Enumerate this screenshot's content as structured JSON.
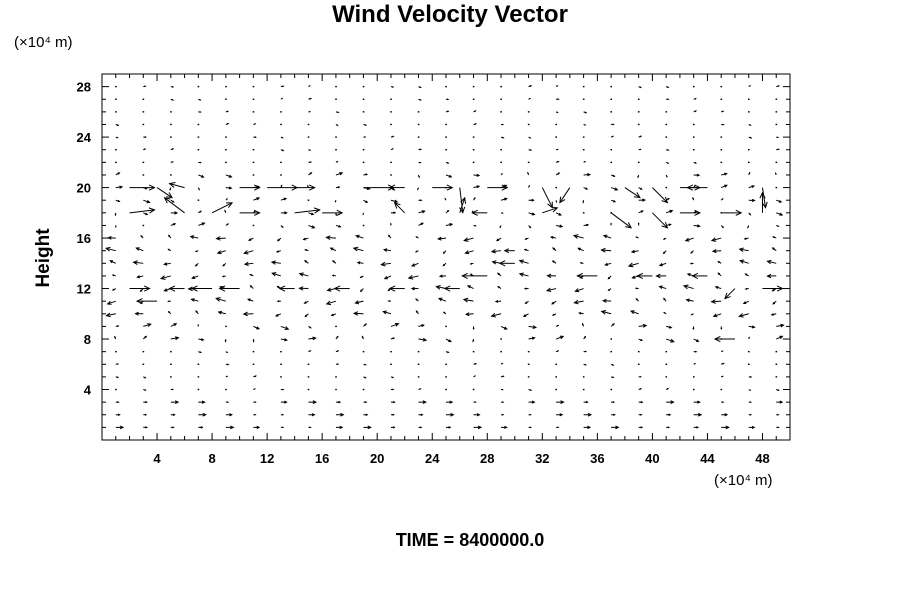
{
  "chart_data": {
    "type": "vector_field",
    "title": "Wind Velocity Vector",
    "ylabel": "Height",
    "xlabel": "",
    "x_unit": "(×10⁴ m)",
    "y_unit": "(×10⁴ m)",
    "xlim": [
      0,
      50
    ],
    "ylim": [
      0,
      29
    ],
    "x_ticks": [
      4,
      8,
      12,
      16,
      20,
      24,
      28,
      32,
      36,
      40,
      44,
      48
    ],
    "y_ticks": [
      4,
      8,
      12,
      16,
      20,
      24,
      28
    ],
    "grid": false,
    "grid_spacing": {
      "x": 2,
      "y": 1
    },
    "vectors": [
      {
        "x": 2,
        "y": 20,
        "u": 2.5,
        "v": 0.0
      },
      {
        "x": 4,
        "y": 20,
        "u": 1.5,
        "v": -1.0
      },
      {
        "x": 6,
        "y": 20,
        "u": -1.5,
        "v": 0.4
      },
      {
        "x": 10,
        "y": 20,
        "u": 2.0,
        "v": 0.0
      },
      {
        "x": 12,
        "y": 20,
        "u": 3.0,
        "v": 0.0
      },
      {
        "x": 14,
        "y": 20,
        "u": 2.0,
        "v": 0.0
      },
      {
        "x": 19,
        "y": 20,
        "u": 3.0,
        "v": 0.0
      },
      {
        "x": 22,
        "y": 20,
        "u": -1.5,
        "v": 0.0
      },
      {
        "x": 24,
        "y": 20,
        "u": 2.0,
        "v": 0.0
      },
      {
        "x": 26,
        "y": 20,
        "u": 0.3,
        "v": -2.5
      },
      {
        "x": 28,
        "y": 20,
        "u": 2.0,
        "v": 0.0
      },
      {
        "x": 32,
        "y": 20,
        "u": 1.0,
        "v": -2.0
      },
      {
        "x": 34,
        "y": 20,
        "u": -1.0,
        "v": -1.5
      },
      {
        "x": 38,
        "y": 20,
        "u": 1.5,
        "v": -1.0
      },
      {
        "x": 40,
        "y": 20,
        "u": 1.5,
        "v": -1.5
      },
      {
        "x": 42,
        "y": 20,
        "u": 2.0,
        "v": 0.0
      },
      {
        "x": 44,
        "y": 20,
        "u": -2.0,
        "v": 0.0
      },
      {
        "x": 48,
        "y": 20,
        "u": 0.3,
        "v": -2.0
      },
      {
        "x": 2,
        "y": 18,
        "u": 2.5,
        "v": 0.3
      },
      {
        "x": 6,
        "y": 18,
        "u": -2.0,
        "v": 1.5
      },
      {
        "x": 8,
        "y": 18,
        "u": 2.0,
        "v": 1.0
      },
      {
        "x": 10,
        "y": 18,
        "u": 2.0,
        "v": 0.0
      },
      {
        "x": 14,
        "y": 18,
        "u": 2.5,
        "v": 0.3
      },
      {
        "x": 16,
        "y": 18,
        "u": 2.0,
        "v": 0.0
      },
      {
        "x": 22,
        "y": 18,
        "u": -1.0,
        "v": 1.0
      },
      {
        "x": 26,
        "y": 18,
        "u": 0.5,
        "v": 1.5
      },
      {
        "x": 28,
        "y": 18,
        "u": -1.5,
        "v": 0.0
      },
      {
        "x": 32,
        "y": 18,
        "u": 1.5,
        "v": 0.5
      },
      {
        "x": 37,
        "y": 18,
        "u": 2.0,
        "v": -1.5
      },
      {
        "x": 40,
        "y": 18,
        "u": 1.5,
        "v": -1.5
      },
      {
        "x": 42,
        "y": 18,
        "u": 2.0,
        "v": 0.0
      },
      {
        "x": 45,
        "y": 18,
        "u": 2.0,
        "v": 0.0
      },
      {
        "x": 48,
        "y": 18,
        "u": 0.0,
        "v": 2.0
      },
      {
        "x": 2,
        "y": 12,
        "u": 2.0,
        "v": 0.0
      },
      {
        "x": 4,
        "y": 11,
        "u": -2.0,
        "v": 0.0
      },
      {
        "x": 6,
        "y": 12,
        "u": -1.5,
        "v": 0.0
      },
      {
        "x": 8,
        "y": 12,
        "u": -2.0,
        "v": 0.0
      },
      {
        "x": 10,
        "y": 12,
        "u": -2.0,
        "v": 0.0
      },
      {
        "x": 14,
        "y": 12,
        "u": -1.5,
        "v": 0.0
      },
      {
        "x": 18,
        "y": 12,
        "u": -1.5,
        "v": 0.0
      },
      {
        "x": 22,
        "y": 12,
        "u": -1.5,
        "v": 0.0
      },
      {
        "x": 26,
        "y": 12,
        "u": -1.5,
        "v": 0.0
      },
      {
        "x": 28,
        "y": 13,
        "u": -2.5,
        "v": 0.0
      },
      {
        "x": 30,
        "y": 14,
        "u": -1.5,
        "v": 0.0
      },
      {
        "x": 30,
        "y": 15,
        "u": -1.0,
        "v": 0.0
      },
      {
        "x": 36,
        "y": 13,
        "u": -2.0,
        "v": 0.0
      },
      {
        "x": 40,
        "y": 13,
        "u": -1.5,
        "v": 0.0
      },
      {
        "x": 44,
        "y": 13,
        "u": -1.5,
        "v": 0.0
      },
      {
        "x": 46,
        "y": 12,
        "u": -1.0,
        "v": -1.0
      },
      {
        "x": 48,
        "y": 12,
        "u": 2.0,
        "v": 0.0
      },
      {
        "x": 46,
        "y": 8,
        "u": -2.0,
        "v": 0.0
      }
    ]
  },
  "footer": {
    "time_label": "TIME = 8400000.0"
  }
}
